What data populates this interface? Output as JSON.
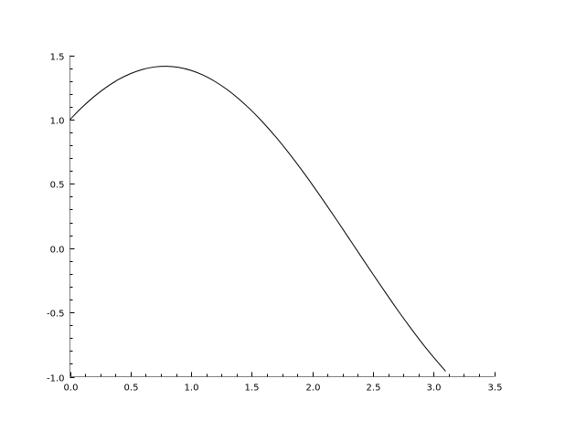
{
  "chart_data": {
    "type": "line",
    "title": "",
    "xlabel": "",
    "ylabel": "",
    "xlim": [
      0.0,
      3.5
    ],
    "ylim": [
      -1.0,
      1.5
    ],
    "grid": false,
    "x_ticks": [
      "0.0",
      "0.5",
      "1.0",
      "1.5",
      "2.0",
      "2.5",
      "3.0",
      "3.5"
    ],
    "y_ticks": [
      "-1.0",
      "-0.5",
      "0.0",
      "0.5",
      "1.0",
      "1.5"
    ],
    "x_minor_step": 0.125,
    "y_minor_step": 0.1,
    "line_color": "#000000",
    "axis_color": "#808080",
    "series": [
      {
        "x": [
          0.0,
          0.1,
          0.2,
          0.3,
          0.4,
          0.5,
          0.6,
          0.7,
          0.8,
          0.9,
          1.0,
          1.1,
          1.2,
          1.3,
          1.4,
          1.5,
          1.6,
          1.7,
          1.8,
          1.9,
          2.0,
          2.1,
          2.2,
          2.3,
          2.4,
          2.5,
          2.6,
          2.7,
          2.8,
          2.9,
          3.0,
          3.1
        ],
        "y": [
          1.0,
          1.095,
          1.179,
          1.251,
          1.311,
          1.357,
          1.39,
          1.409,
          1.414,
          1.405,
          1.382,
          1.345,
          1.294,
          1.231,
          1.155,
          1.068,
          0.97,
          0.863,
          0.747,
          0.623,
          0.493,
          0.358,
          0.22,
          0.079,
          -0.062,
          -0.203,
          -0.341,
          -0.477,
          -0.607,
          -0.732,
          -0.849,
          -0.958
        ]
      }
    ]
  }
}
